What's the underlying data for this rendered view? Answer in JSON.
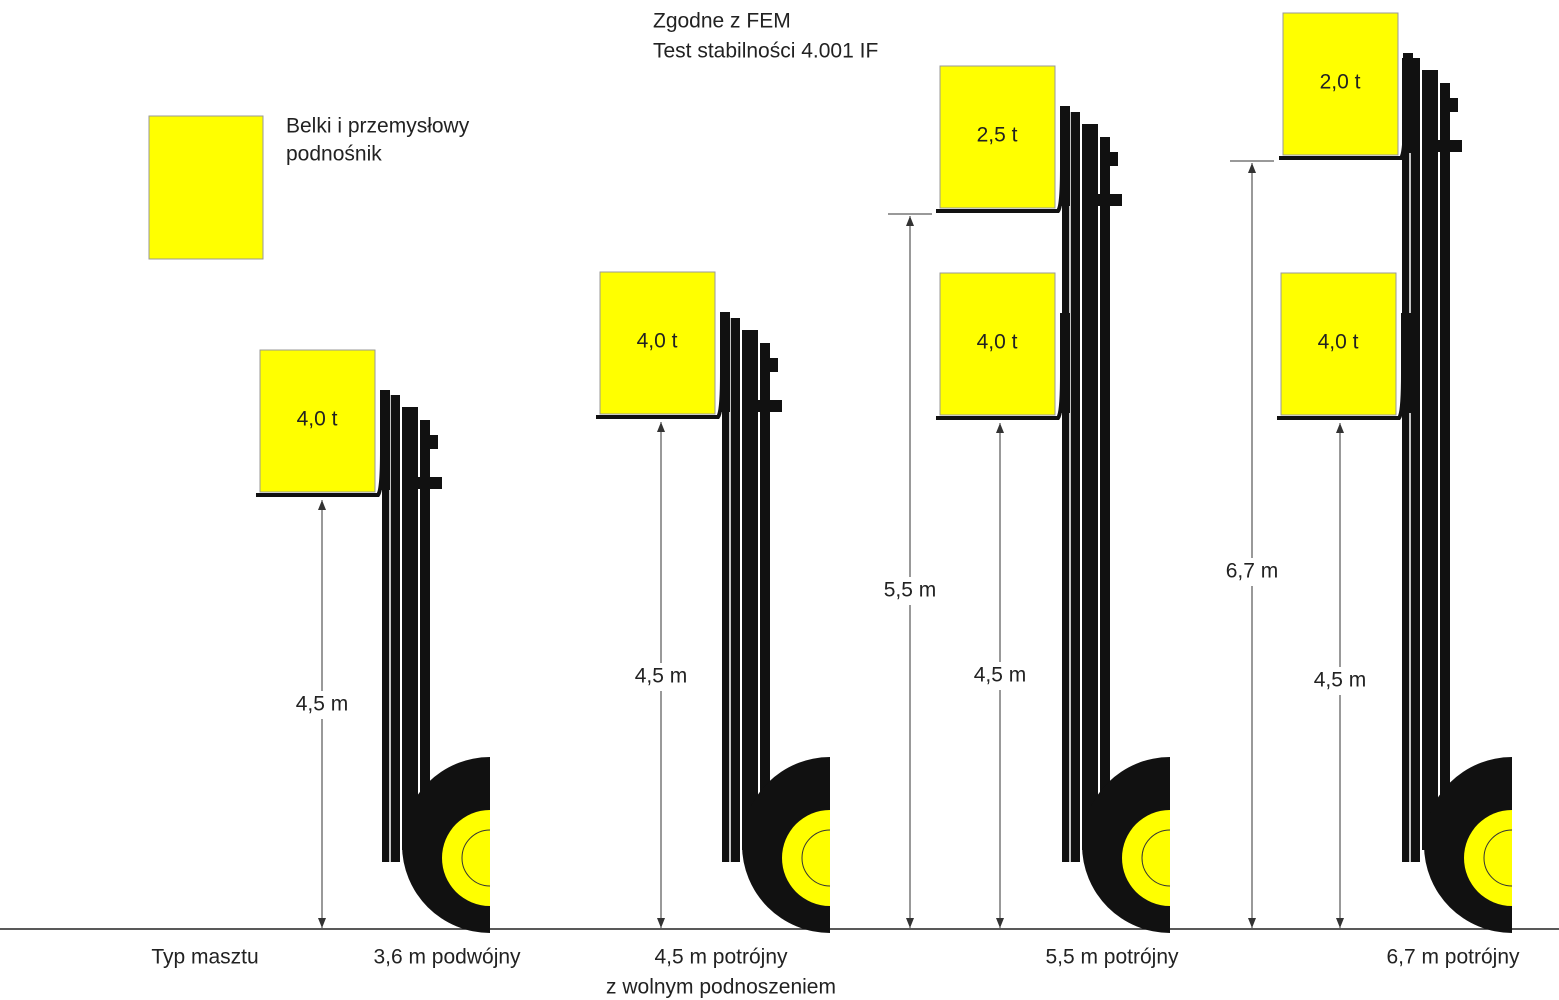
{
  "header": {
    "lines": [
      "Zgodne z FEM",
      "Test stabilności 4.001 IF"
    ]
  },
  "legend": {
    "label_lines": [
      "Belki i przemysłowy",
      "podnośnik"
    ]
  },
  "masts": [
    {
      "label_lines": [
        "3,6 m podwójny"
      ],
      "loads": [
        {
          "label": "4,0 t",
          "height_label": "4,5 m"
        }
      ]
    },
    {
      "label_lines": [
        "4,5 m potrójny",
        "z wolnym podnoszeniem"
      ],
      "loads": [
        {
          "label": "4,0 t",
          "height_label": "4,5 m"
        }
      ]
    },
    {
      "label_lines": [
        "5,5 m potrójny"
      ],
      "loads": [
        {
          "label": "4,0 t",
          "height_label": "4,5 m"
        },
        {
          "label": "2,5 t",
          "height_label": "5,5 m"
        }
      ]
    },
    {
      "label_lines": [
        "6,7 m potrójny"
      ],
      "loads": [
        {
          "label": "4,0 t",
          "height_label": "4,5 m"
        },
        {
          "label": "2,0 t",
          "height_label": "6,7 m"
        }
      ]
    }
  ],
  "footer": {
    "row_label": "Typ masztu"
  }
}
